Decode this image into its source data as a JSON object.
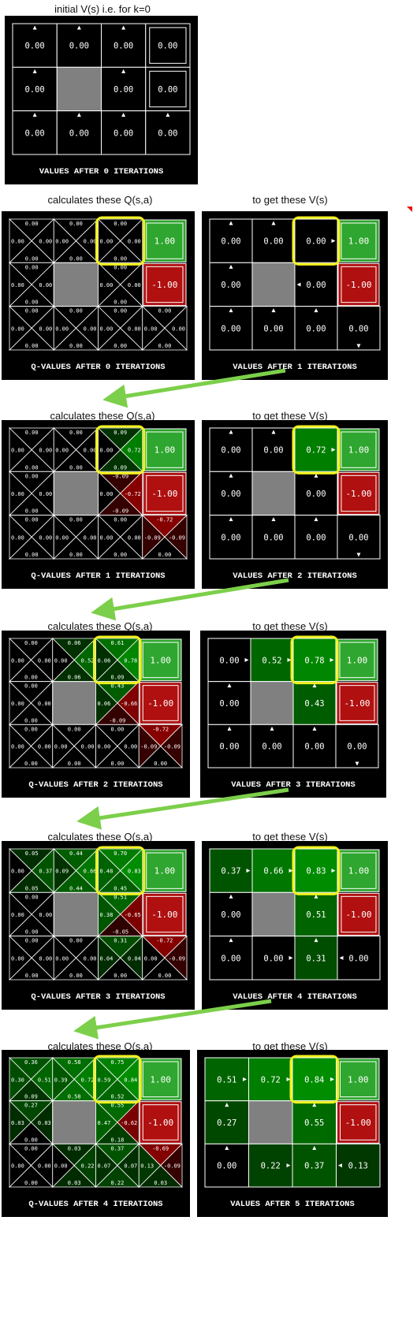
{
  "top_caption": "initial V(s) i.e. for k=0",
  "left_caption": "calculates these Q(s,a)",
  "right_caption": "to get these V(s)",
  "terminal": {
    "good": "1.00",
    "bad": "-1.00"
  },
  "colors": {
    "good": "#2fa62f",
    "good_dark": "#108010",
    "bad": "#b01010",
    "wall": "#808080",
    "highlight": "#f2f21e",
    "arrow": "#7ccf4a"
  },
  "panels": [
    {
      "id": "v0",
      "kind": "values",
      "title": "VALUES AFTER 0 ITERATIONS",
      "cells": [
        [
          "0.00",
          "0.00",
          "0.00",
          "0.00"
        ],
        [
          "0.00",
          null,
          "0.00",
          "0.00"
        ],
        [
          "0.00",
          "0.00",
          "0.00",
          "0.00"
        ]
      ],
      "arrows": [
        [
          "n",
          "n",
          "n",
          ""
        ],
        [
          "n",
          "",
          "n",
          ""
        ],
        [
          "n",
          "n",
          "n",
          "n"
        ]
      ],
      "terminals_numeric": true,
      "highlight": false
    },
    {
      "id": "q0",
      "kind": "qvalues",
      "title": "Q-VALUES AFTER 0 ITERATIONS",
      "q": [
        [
          [
            "0.00",
            "0.00",
            "0.00",
            "0.00"
          ],
          [
            "0.00",
            "0.00",
            "0.00",
            "0.00"
          ],
          [
            "0.00",
            "0.00",
            "0.00",
            "0.00"
          ],
          null
        ],
        [
          [
            "0.00",
            "0.00",
            "0.00",
            "0.00"
          ],
          null,
          [
            "0.00",
            "0.00",
            "0.00",
            "0.00"
          ],
          null
        ],
        [
          [
            "0.00",
            "0.00",
            "0.00",
            "0.00"
          ],
          [
            "0.00",
            "0.00",
            "0.00",
            "0.00"
          ],
          [
            "0.00",
            "0.00",
            "0.00",
            "0.00"
          ],
          [
            "0.00",
            "0.00",
            "0.00",
            "0.00"
          ]
        ]
      ]
    },
    {
      "id": "v1",
      "kind": "values",
      "title": "VALUES AFTER 1 ITERATIONS",
      "cells": [
        [
          "0.00",
          "0.00",
          "0.00",
          "1.00"
        ],
        [
          "0.00",
          null,
          "0.00",
          "-1.00"
        ],
        [
          "0.00",
          "0.00",
          "0.00",
          "0.00"
        ]
      ],
      "arrows": [
        [
          "n",
          "n",
          "e",
          ""
        ],
        [
          "n",
          "",
          "w",
          ""
        ],
        [
          "n",
          "n",
          "n",
          "s"
        ]
      ],
      "shade": [
        [
          0,
          0,
          0,
          0
        ],
        [
          0,
          0,
          0,
          0
        ],
        [
          0,
          0,
          0,
          0
        ]
      ]
    },
    {
      "id": "q1",
      "kind": "qvalues",
      "title": "Q-VALUES AFTER 1 ITERATIONS",
      "q": [
        [
          [
            "0.00",
            "0.00",
            "0.00",
            "0.00"
          ],
          [
            "0.00",
            "0.00",
            "0.00",
            "0.00"
          ],
          [
            "0.09",
            "0.72",
            "0.09",
            "0.00"
          ],
          null
        ],
        [
          [
            "0.00",
            "0.00",
            "0.00",
            "0.00"
          ],
          null,
          [
            "-0.09",
            "-0.72",
            "-0.09",
            "0.00"
          ],
          null
        ],
        [
          [
            "0.00",
            "0.00",
            "0.00",
            "0.00"
          ],
          [
            "0.00",
            "0.00",
            "0.00",
            "0.00"
          ],
          [
            "0.00",
            "0.00",
            "0.00",
            "0.00"
          ],
          [
            "-0.72",
            "-0.09",
            "0.00",
            "-0.09"
          ]
        ]
      ]
    },
    {
      "id": "v2",
      "kind": "values",
      "title": "VALUES AFTER 2 ITERATIONS",
      "cells": [
        [
          "0.00",
          "0.00",
          "0.72",
          "1.00"
        ],
        [
          "0.00",
          null,
          "0.00",
          "-1.00"
        ],
        [
          "0.00",
          "0.00",
          "0.00",
          "0.00"
        ]
      ],
      "arrows": [
        [
          "n",
          "n",
          "e",
          ""
        ],
        [
          "n",
          "",
          "n",
          ""
        ],
        [
          "n",
          "n",
          "n",
          "s"
        ]
      ],
      "shade": [
        [
          0,
          0,
          0.72,
          0
        ],
        [
          0,
          0,
          0,
          0
        ],
        [
          0,
          0,
          0,
          0
        ]
      ]
    },
    {
      "id": "q2",
      "kind": "qvalues",
      "title": "Q-VALUES AFTER 2 ITERATIONS",
      "q": [
        [
          [
            "0.00",
            "0.00",
            "0.00",
            "0.00"
          ],
          [
            "0.06",
            "0.52",
            "0.06",
            "0.00"
          ],
          [
            "0.61",
            "0.78",
            "0.09",
            "0.06"
          ],
          null
        ],
        [
          [
            "0.00",
            "0.00",
            "0.00",
            "0.00"
          ],
          null,
          [
            "0.43",
            "-0.66",
            "-0.09",
            "0.06"
          ],
          null
        ],
        [
          [
            "0.00",
            "0.00",
            "0.00",
            "0.00"
          ],
          [
            "0.00",
            "0.00",
            "0.00",
            "0.00"
          ],
          [
            "0.00",
            "0.00",
            "0.00",
            "0.00"
          ],
          [
            "-0.72",
            "-0.09",
            "0.00",
            "-0.09"
          ]
        ]
      ]
    },
    {
      "id": "v3",
      "kind": "values",
      "title": "VALUES AFTER 3 ITERATIONS",
      "cells": [
        [
          "0.00",
          "0.52",
          "0.78",
          "1.00"
        ],
        [
          "0.00",
          null,
          "0.43",
          "-1.00"
        ],
        [
          "0.00",
          "0.00",
          "0.00",
          "0.00"
        ]
      ],
      "arrows": [
        [
          "e",
          "e",
          "e",
          ""
        ],
        [
          "n",
          "",
          "n",
          ""
        ],
        [
          "n",
          "n",
          "n",
          "s"
        ]
      ],
      "shade": [
        [
          0,
          0.52,
          0.78,
          0
        ],
        [
          0,
          0,
          0.43,
          0
        ],
        [
          0,
          0,
          0,
          0
        ]
      ]
    },
    {
      "id": "q3",
      "kind": "qvalues",
      "title": "Q-VALUES AFTER 3 ITERATIONS",
      "q": [
        [
          [
            "0.05",
            "0.37",
            "0.05",
            "0.00"
          ],
          [
            "0.44",
            "0.66",
            "0.44",
            "0.09"
          ],
          [
            "0.70",
            "0.83",
            "0.45",
            "0.48"
          ],
          null
        ],
        [
          [
            "0.00",
            "0.00",
            "0.00",
            "0.00"
          ],
          null,
          [
            "0.51",
            "-0.65",
            "-0.05",
            "0.38"
          ],
          null
        ],
        [
          [
            "0.00",
            "0.00",
            "0.00",
            "0.00"
          ],
          [
            "0.00",
            "0.00",
            "0.00",
            "0.00"
          ],
          [
            "0.31",
            "0.04",
            "0.00",
            "0.04"
          ],
          [
            "-0.72",
            "-0.09",
            "0.00",
            "0.00"
          ]
        ]
      ]
    },
    {
      "id": "v4",
      "kind": "values",
      "title": "VALUES AFTER 4 ITERATIONS",
      "cells": [
        [
          "0.37",
          "0.66",
          "0.83",
          "1.00"
        ],
        [
          "0.00",
          null,
          "0.51",
          "-1.00"
        ],
        [
          "0.00",
          "0.00",
          "0.31",
          "0.00"
        ]
      ],
      "arrows": [
        [
          "e",
          "e",
          "e",
          ""
        ],
        [
          "n",
          "",
          "n",
          ""
        ],
        [
          "n",
          "e",
          "n",
          "w"
        ]
      ],
      "shade": [
        [
          0.37,
          0.66,
          0.83,
          0
        ],
        [
          0,
          0,
          0.51,
          0
        ],
        [
          0,
          0,
          0.31,
          0
        ]
      ]
    },
    {
      "id": "q4",
      "kind": "qvalues",
      "title": "Q-VALUES AFTER 4 ITERATIONS",
      "q": [
        [
          [
            "0.36",
            "0.51",
            "0.09",
            "0.30"
          ],
          [
            "0.58",
            "0.72",
            "0.58",
            "0.39"
          ],
          [
            "0.75",
            "0.84",
            "0.52",
            "0.59"
          ],
          null
        ],
        [
          [
            "0.27",
            "0.03",
            "0.00",
            "0.03"
          ],
          null,
          [
            "0.55",
            "-0.62",
            "0.18",
            "0.47"
          ],
          null
        ],
        [
          [
            "0.00",
            "0.00",
            "0.00",
            "0.00"
          ],
          [
            "0.03",
            "0.22",
            "0.03",
            "0.00"
          ],
          [
            "0.37",
            "0.07",
            "0.22",
            "0.07"
          ],
          [
            "-0.69",
            "-0.09",
            "0.03",
            "0.13"
          ]
        ]
      ]
    },
    {
      "id": "v5",
      "kind": "values",
      "title": "VALUES AFTER 5 ITERATIONS",
      "cells": [
        [
          "0.51",
          "0.72",
          "0.84",
          "1.00"
        ],
        [
          "0.27",
          null,
          "0.55",
          "-1.00"
        ],
        [
          "0.00",
          "0.22",
          "0.37",
          "0.13"
        ]
      ],
      "arrows": [
        [
          "e",
          "e",
          "e",
          ""
        ],
        [
          "n",
          "",
          "n",
          ""
        ],
        [
          "n",
          "e",
          "n",
          "w"
        ]
      ],
      "shade": [
        [
          0.51,
          0.72,
          0.84,
          0
        ],
        [
          0.27,
          0,
          0.55,
          0
        ],
        [
          0,
          0.22,
          0.37,
          0.13
        ]
      ]
    }
  ]
}
